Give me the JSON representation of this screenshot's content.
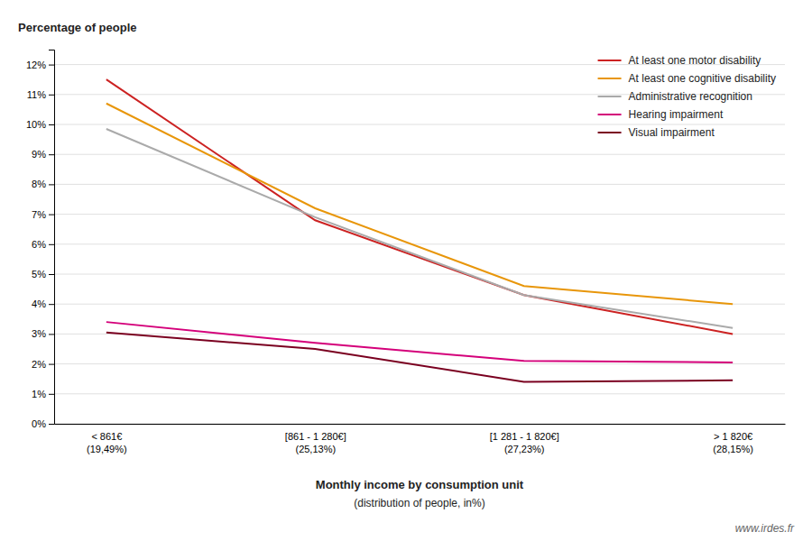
{
  "chart_data": {
    "type": "line",
    "y_label": "Percentage of people",
    "x_label": "Monthly income by consumption unit",
    "annotations": [
      "(distribution of people, in%)",
      "www.irdes.fr"
    ],
    "categories": [
      "< 861€\n(19,49%)",
      "[861 - 1 280€]\n(25,13%)",
      "[1 281 - 1 820€]\n(27,23%)",
      "> 1 820€\n(28,15%)"
    ],
    "series": [
      {
        "name": "At least one motor disability",
        "color": "#cc2222",
        "values": [
          11.5,
          6.8,
          4.3,
          3.0
        ]
      },
      {
        "name": "At least one cognitive disability",
        "color": "#e8960a",
        "values": [
          10.7,
          7.2,
          4.6,
          4.0
        ]
      },
      {
        "name": "Administrative recognition",
        "color": "#aaaaaa",
        "values": [
          9.85,
          6.9,
          4.3,
          3.2
        ]
      },
      {
        "name": "Hearing impairment",
        "color": "#d4007a",
        "values": [
          3.4,
          2.7,
          2.1,
          2.05
        ]
      },
      {
        "name": "Visual impairment",
        "color": "#7a0020",
        "values": [
          3.05,
          2.5,
          1.4,
          1.45
        ]
      }
    ],
    "ylim": [
      0,
      12.5
    ],
    "yticks": [
      {
        "value": 0,
        "label": "0%"
      },
      {
        "value": 1,
        "label": "1%"
      },
      {
        "value": 2,
        "label": "2%"
      },
      {
        "value": 3,
        "label": "3%"
      },
      {
        "value": 4,
        "label": "4%"
      },
      {
        "value": 5,
        "label": "5%"
      },
      {
        "value": 6,
        "label": "6%"
      },
      {
        "value": 7,
        "label": "7%"
      },
      {
        "value": 8,
        "label": "8%"
      },
      {
        "value": 9,
        "label": "9%"
      },
      {
        "value": 10,
        "label": "10%"
      },
      {
        "value": 11,
        "label": "11%"
      },
      {
        "value": 12,
        "label": "12%"
      }
    ],
    "grid": true,
    "legend": "upper right"
  }
}
